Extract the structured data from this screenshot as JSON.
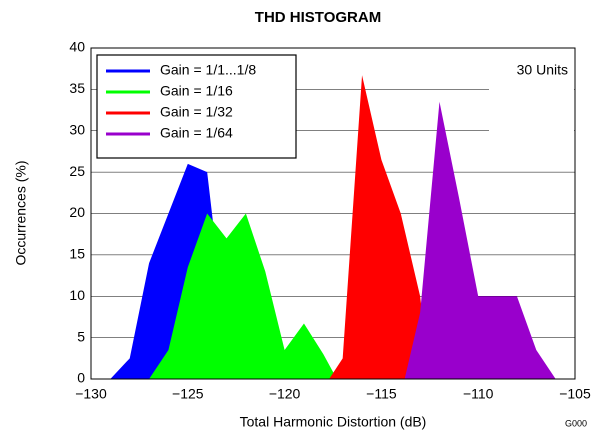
{
  "chart_data": {
    "type": "area",
    "title": "THD HISTOGRAM",
    "x_label": "Total Harmonic Distortion (dB)",
    "y_label": "Occurrences (%)",
    "annotation": "30 Units",
    "figure_id": "G000",
    "xlim": [
      -130,
      -105
    ],
    "xticks": [
      {
        "value": -130,
        "label": "−130"
      },
      {
        "value": -125,
        "label": "−125"
      },
      {
        "value": -120,
        "label": "−120"
      },
      {
        "value": -115,
        "label": "−115"
      },
      {
        "value": -110,
        "label": "−110"
      },
      {
        "value": -105,
        "label": "−105"
      }
    ],
    "ylim": [
      0,
      40
    ],
    "yticks": [
      0,
      5,
      10,
      15,
      20,
      25,
      30,
      35,
      40
    ],
    "grid": true,
    "legend": "upper left",
    "series": [
      {
        "name": "Gain = 1/1...1/8",
        "color": "#0000ff",
        "x": [
          -129,
          -128,
          -127,
          -125,
          -124,
          -123,
          -122
        ],
        "values": [
          0,
          2.5,
          14,
          26,
          25,
          5,
          0
        ]
      },
      {
        "name": "Gain = 1/16",
        "color": "#00ff00",
        "x": [
          -127,
          -126,
          -125,
          -124,
          -123,
          -122,
          -121,
          -120,
          -119,
          -118,
          -117.3
        ],
        "values": [
          0,
          3.5,
          13.5,
          20,
          17,
          20,
          13,
          3.5,
          6.7,
          3,
          0
        ]
      },
      {
        "name": "Gain = 1/32",
        "color": "#ff0000",
        "x": [
          -117.7,
          -117,
          -116,
          -115,
          -114,
          -113,
          -112.5
        ],
        "values": [
          0,
          2.5,
          36.7,
          26.5,
          20,
          10,
          0
        ]
      },
      {
        "name": "Gain = 1/64",
        "color": "#9900cc",
        "x": [
          -113.8,
          -113,
          -112,
          -111,
          -110,
          -109,
          -108,
          -107,
          -106
        ],
        "values": [
          0,
          8,
          33.5,
          22,
          10,
          10,
          10,
          3.5,
          0
        ]
      }
    ]
  }
}
